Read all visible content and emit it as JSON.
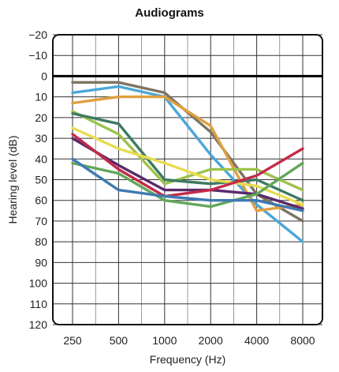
{
  "chart_data": {
    "type": "line",
    "title": "Audiograms",
    "xlabel": "Frequency (Hz)",
    "ylabel": "Hearing level (dB)",
    "categories": [
      "250",
      "500",
      "1000",
      "2000",
      "4000",
      "8000"
    ],
    "y_ticks": [
      "−20",
      "−10",
      "0",
      "10",
      "20",
      "30",
      "40",
      "50",
      "60",
      "70",
      "80",
      "90",
      "100",
      "110",
      "120"
    ],
    "ylim": [
      -20,
      120
    ],
    "y_inverted": true,
    "reference_line": 0,
    "grid": true,
    "legend": "none",
    "series": [
      {
        "color": "#7d7463",
        "values": [
          3,
          3,
          8,
          27,
          57,
          70
        ]
      },
      {
        "color": "#4aa7d9",
        "values": [
          8,
          5,
          10,
          38,
          62,
          80
        ]
      },
      {
        "color": "#e0a040",
        "values": [
          13,
          10,
          10,
          24,
          65,
          62
        ]
      },
      {
        "color": "#9fc24a",
        "values": [
          17,
          28,
          52,
          45,
          45,
          55
        ]
      },
      {
        "color": "#3d7a62",
        "values": [
          18,
          23,
          50,
          52,
          50,
          60
        ]
      },
      {
        "color": "#e8dc52",
        "values": [
          25,
          35,
          42,
          50,
          53,
          62
        ]
      },
      {
        "color": "#5a2a6a",
        "values": [
          30,
          43,
          55,
          55,
          57,
          64
        ]
      },
      {
        "color": "#c42a4a",
        "values": [
          28,
          45,
          58,
          55,
          48,
          35
        ]
      },
      {
        "color": "#62a85a",
        "values": [
          42,
          47,
          60,
          63,
          57,
          42
        ]
      },
      {
        "color": "#3f7ab0",
        "values": [
          40,
          55,
          58,
          60,
          60,
          65
        ]
      }
    ]
  }
}
